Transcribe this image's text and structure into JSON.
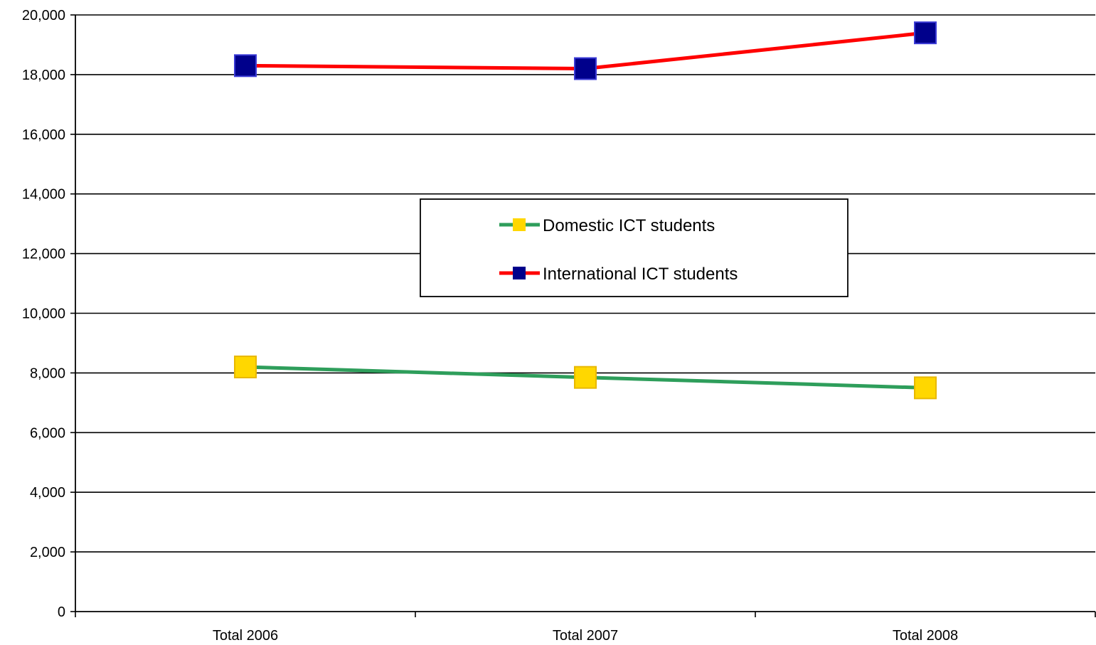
{
  "chart_data": {
    "type": "line",
    "categories": [
      "Total 2006",
      "Total 2007",
      "Total 2008"
    ],
    "series": [
      {
        "name": "Domestic ICT students",
        "values": [
          8200,
          7850,
          7500
        ],
        "line_color": "#2E9E5B",
        "marker_color": "#FFD700",
        "marker_icon": "square-marker-icon"
      },
      {
        "name": "International ICT students",
        "values": [
          18300,
          18200,
          19400
        ],
        "line_color": "#FF0000",
        "marker_color": "#00008B",
        "marker_icon": "square-marker-icon"
      }
    ],
    "title": "",
    "xlabel": "",
    "ylabel": "",
    "ylim": [
      0,
      20000
    ],
    "yticks": [
      "0",
      "2,000",
      "4,000",
      "6,000",
      "8,000",
      "10,000",
      "12,000",
      "14,000",
      "16,000",
      "18,000",
      "20,000"
    ],
    "ytick_values": [
      0,
      2000,
      4000,
      6000,
      8000,
      10000,
      12000,
      14000,
      16000,
      18000,
      20000
    ],
    "grid": true,
    "legend_position": "center"
  }
}
